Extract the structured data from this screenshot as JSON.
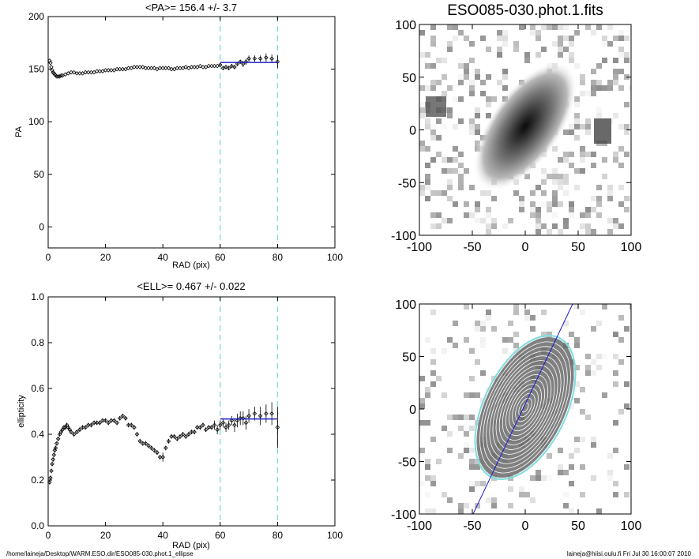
{
  "footer": {
    "left": "/home/laineja/Desktop/WARM.ESO.dir/ESO085-030.phot.1_ellipse",
    "right": "laineja@hiisi.oulu.fi  Fri Jul 30 16:00:07 2010"
  },
  "chart_data": [
    {
      "type": "scatter",
      "title": "<PA>= 156.4 +/-   3.7",
      "xlabel": "RAD (pix)",
      "ylabel": "PA",
      "xlim": [
        0,
        100
      ],
      "ylim": [
        -20,
        200
      ],
      "xticks": [
        0,
        20,
        40,
        60,
        80,
        100
      ],
      "yticks": [
        0,
        50,
        100,
        150,
        200
      ],
      "range_markers": [
        60,
        80
      ],
      "mean_value": 156.4,
      "series": [
        {
          "x": [
            0.5,
            0.8,
            1.1,
            1.4,
            1.7,
            2.0,
            2.3,
            2.6,
            3.0,
            3.5,
            4.0,
            4.5,
            5.0,
            6.0,
            7.0,
            8.0,
            9.0,
            10.0,
            11.0,
            12.0,
            13.0,
            14.0,
            15.0,
            16.0,
            17.0,
            18.0,
            19.0,
            20.0,
            21.0,
            22.0,
            23.0,
            24.0,
            25.0,
            26.0,
            27.0,
            28.0,
            29.0,
            30.0,
            31.0,
            32.0,
            33.0,
            34.0,
            35.0,
            36.0,
            37.0,
            38.0,
            39.0,
            40.0,
            41.0,
            42.0,
            43.0,
            44.0,
            45.0,
            46.0,
            47.0,
            48.0,
            49.0,
            50.0,
            51.0,
            52.0,
            53.0,
            54.0,
            55.0,
            56.0,
            57.0,
            58.0,
            59.0,
            60.0,
            61.0,
            62.0,
            63.0,
            64.0,
            65.0,
            66.0,
            67.0,
            68.0,
            69.0,
            70.0,
            72.0,
            74.0,
            76.0,
            78.0,
            80.0
          ],
          "y": [
            158,
            156,
            152,
            149,
            147,
            146,
            145,
            144,
            143,
            143,
            143,
            144,
            144,
            145,
            146,
            147,
            147,
            146,
            146,
            146,
            147,
            147,
            147,
            147,
            148,
            148,
            148,
            149,
            149,
            149,
            149,
            150,
            150,
            150,
            150,
            151,
            151,
            152,
            152,
            152,
            152,
            151,
            151,
            151,
            151,
            150,
            151,
            151,
            151,
            151,
            150,
            150,
            151,
            151,
            151,
            152,
            151,
            152,
            152,
            152,
            153,
            152,
            152,
            153,
            153,
            153,
            153,
            154,
            151,
            152,
            151,
            153,
            152,
            155,
            157,
            155,
            157,
            160,
            160,
            160,
            161,
            160,
            157
          ],
          "yerr": [
            0,
            0,
            0,
            0,
            0,
            0,
            0,
            0,
            0,
            0,
            0,
            0,
            0,
            0,
            0,
            0,
            0,
            0,
            0,
            0,
            0,
            0,
            0,
            0,
            0,
            0,
            0,
            0,
            0,
            0,
            0,
            0,
            0,
            0,
            0,
            0,
            0,
            0,
            0,
            0,
            0,
            0,
            0,
            0,
            0,
            0,
            0,
            0,
            0,
            0,
            0,
            0,
            0,
            0,
            0,
            0,
            0,
            0,
            0,
            0,
            0,
            0,
            0,
            0,
            0,
            0,
            0,
            1,
            2,
            2,
            2,
            2,
            2,
            2,
            2,
            3,
            3,
            3,
            3,
            3,
            4,
            4,
            6
          ]
        },
        {
          "x": [
            60,
            80
          ],
          "y": [
            156.4,
            156.4
          ],
          "kind": "fit"
        }
      ]
    },
    {
      "type": "image",
      "title": "ESO085-030.phot.1.fits",
      "xlim": [
        -100,
        100
      ],
      "ylim": [
        -100,
        100
      ],
      "xticks": [
        -100,
        -50,
        0,
        50,
        100
      ],
      "yticks": [
        -100,
        -50,
        0,
        50,
        100
      ]
    },
    {
      "type": "scatter",
      "title": "<ELL>= 0.467 +/-  0.022",
      "xlabel": "RAD (pix)",
      "ylabel": "ellipticity",
      "xlim": [
        0,
        100
      ],
      "ylim": [
        0.0,
        1.0
      ],
      "xticks": [
        0,
        20,
        40,
        60,
        80,
        100
      ],
      "xtick_labels": [
        "0",
        "20",
        "40",
        "60",
        "80",
        "100"
      ],
      "yticks": [
        0.0,
        0.2,
        0.4,
        0.6,
        0.8,
        1.0
      ],
      "ytick_labels": [
        "0.0",
        "0.2",
        "0.4",
        "0.6",
        "0.8",
        "1.0"
      ],
      "range_markers": [
        60,
        80
      ],
      "mean_value": 0.467,
      "series": [
        {
          "x": [
            0.5,
            0.8,
            1.1,
            1.4,
            1.7,
            2.0,
            2.3,
            2.6,
            3.0,
            3.5,
            4.0,
            4.5,
            5.0,
            5.5,
            6.0,
            6.5,
            7.0,
            7.5,
            8.0,
            9.0,
            10.0,
            11.0,
            12.0,
            13.0,
            14.0,
            15.0,
            16.0,
            17.0,
            18.0,
            19.0,
            20.0,
            21.0,
            22.0,
            23.0,
            24.0,
            25.0,
            26.0,
            27.0,
            28.0,
            29.0,
            30.0,
            31.0,
            32.0,
            33.0,
            34.0,
            35.0,
            36.0,
            37.0,
            38.0,
            39.0,
            40.0,
            41.0,
            42.0,
            43.0,
            44.0,
            45.0,
            46.0,
            47.0,
            48.0,
            49.0,
            50.0,
            51.0,
            52.0,
            53.0,
            54.0,
            55.0,
            56.0,
            57.0,
            58.0,
            59.0,
            60.0,
            61.0,
            62.0,
            63.0,
            64.0,
            65.0,
            66.0,
            67.0,
            68.0,
            69.0,
            70.0,
            72.0,
            74.0,
            76.0,
            78.0,
            80.0
          ],
          "y": [
            0.19,
            0.21,
            0.24,
            0.27,
            0.29,
            0.31,
            0.33,
            0.34,
            0.36,
            0.38,
            0.4,
            0.41,
            0.42,
            0.43,
            0.43,
            0.44,
            0.43,
            0.42,
            0.41,
            0.4,
            0.41,
            0.42,
            0.43,
            0.43,
            0.44,
            0.44,
            0.45,
            0.45,
            0.45,
            0.46,
            0.46,
            0.45,
            0.46,
            0.46,
            0.45,
            0.47,
            0.48,
            0.47,
            0.44,
            0.44,
            0.43,
            0.4,
            0.37,
            0.36,
            0.36,
            0.35,
            0.34,
            0.33,
            0.32,
            0.3,
            0.3,
            0.34,
            0.37,
            0.39,
            0.39,
            0.38,
            0.39,
            0.4,
            0.39,
            0.4,
            0.41,
            0.41,
            0.43,
            0.43,
            0.44,
            0.42,
            0.43,
            0.43,
            0.44,
            0.42,
            0.44,
            0.45,
            0.43,
            0.44,
            0.46,
            0.44,
            0.46,
            0.47,
            0.47,
            0.45,
            0.48,
            0.49,
            0.48,
            0.49,
            0.49,
            0.43
          ],
          "yerr": [
            0.01,
            0.01,
            0.01,
            0.01,
            0.01,
            0.01,
            0.01,
            0.01,
            0.01,
            0.01,
            0.01,
            0.01,
            0.01,
            0.01,
            0.01,
            0.01,
            0.01,
            0.01,
            0.01,
            0.01,
            0.01,
            0.01,
            0.01,
            0.01,
            0.01,
            0.01,
            0.01,
            0.01,
            0.01,
            0.01,
            0.01,
            0.01,
            0.01,
            0.01,
            0.01,
            0.01,
            0.01,
            0.01,
            0.01,
            0.01,
            0.01,
            0.01,
            0.01,
            0.01,
            0.01,
            0.01,
            0.01,
            0.01,
            0.01,
            0.01,
            0.02,
            0.01,
            0.01,
            0.01,
            0.01,
            0.01,
            0.01,
            0.01,
            0.01,
            0.01,
            0.01,
            0.01,
            0.01,
            0.01,
            0.01,
            0.01,
            0.01,
            0.01,
            0.02,
            0.02,
            0.02,
            0.02,
            0.02,
            0.02,
            0.02,
            0.03,
            0.03,
            0.03,
            0.03,
            0.03,
            0.03,
            0.03,
            0.04,
            0.04,
            0.05,
            0.09
          ]
        },
        {
          "x": [
            60,
            80
          ],
          "y": [
            0.467,
            0.467
          ],
          "kind": "fit"
        }
      ]
    },
    {
      "type": "image",
      "title": "",
      "xlim": [
        -100,
        100
      ],
      "ylim": [
        -100,
        100
      ],
      "xticks": [
        -100,
        -50,
        0,
        50,
        100
      ],
      "yticks": [
        -100,
        -50,
        0,
        50,
        100
      ],
      "overlay": "isophote ellipses with major axis line"
    }
  ],
  "colors": {
    "marker": "#000000",
    "fit_line": "#2020c0",
    "range_line": "#7fdcdc",
    "ellipse_outer": "#7fdcdc",
    "axis_line": "#1a1ad0"
  }
}
